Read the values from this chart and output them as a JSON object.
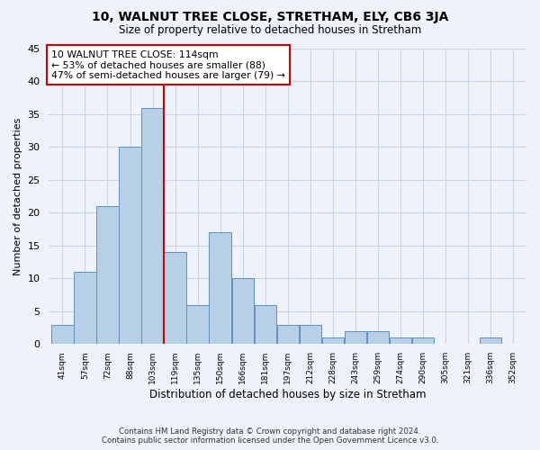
{
  "title": "10, WALNUT TREE CLOSE, STRETHAM, ELY, CB6 3JA",
  "subtitle": "Size of property relative to detached houses in Stretham",
  "xlabel": "Distribution of detached houses by size in Stretham",
  "ylabel": "Number of detached properties",
  "bin_labels": [
    "41sqm",
    "57sqm",
    "72sqm",
    "88sqm",
    "103sqm",
    "119sqm",
    "135sqm",
    "150sqm",
    "166sqm",
    "181sqm",
    "197sqm",
    "212sqm",
    "228sqm",
    "243sqm",
    "259sqm",
    "274sqm",
    "290sqm",
    "305sqm",
    "321sqm",
    "336sqm",
    "352sqm"
  ],
  "bin_centers": [
    0,
    1,
    2,
    3,
    4,
    5,
    6,
    7,
    8,
    9,
    10,
    11,
    12,
    13,
    14,
    15,
    16,
    17,
    18,
    19,
    20
  ],
  "bar_heights": [
    3,
    11,
    21,
    30,
    36,
    14,
    6,
    17,
    10,
    6,
    3,
    3,
    1,
    2,
    2,
    1,
    1,
    0,
    0,
    1,
    0
  ],
  "bar_color": "#b8cfe8",
  "bar_edge_color": "#6090c0",
  "property_bin": 4.5,
  "vline_color": "#cc0000",
  "annotation_text": "10 WALNUT TREE CLOSE: 114sqm\n← 53% of detached houses are smaller (88)\n47% of semi-detached houses are larger (79) →",
  "annotation_box_color": "#ffffff",
  "annotation_box_edge": "#cc0000",
  "ylim": [
    0,
    45
  ],
  "yticks": [
    0,
    5,
    10,
    15,
    20,
    25,
    30,
    35,
    40,
    45
  ],
  "grid_color": "#c8d4e8",
  "background_color": "#eef2fa",
  "footer_line1": "Contains HM Land Registry data © Crown copyright and database right 2024.",
  "footer_line2": "Contains public sector information licensed under the Open Government Licence v3.0."
}
